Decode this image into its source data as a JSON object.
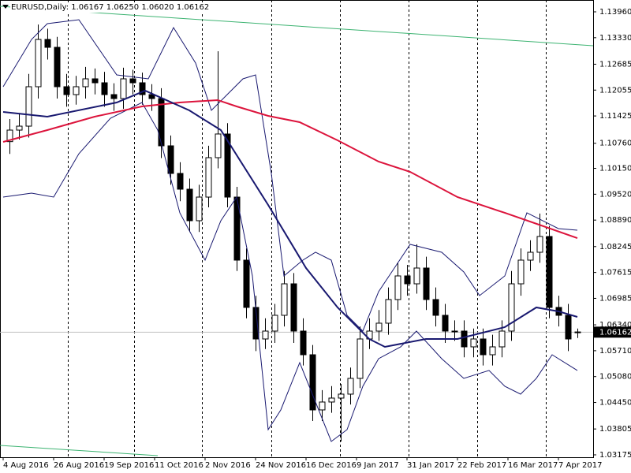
{
  "chart_data": {
    "type": "candlestick",
    "title": "EURUSD,Daily: 1.06167 1.06250 1.06020 1.06162",
    "x": [
      2,
      5,
      8,
      11,
      14,
      17,
      20,
      23,
      26,
      29,
      32,
      35,
      38,
      41,
      44,
      47,
      50,
      53,
      56,
      59,
      62,
      65,
      68,
      71,
      74,
      77,
      80,
      83,
      86,
      89,
      92,
      95,
      98,
      101,
      104,
      107,
      110,
      113,
      116,
      119,
      122,
      125,
      128,
      131,
      134,
      137,
      140,
      143,
      146,
      149,
      152,
      155,
      158,
      161,
      164,
      167,
      170,
      173,
      176,
      179,
      182
    ],
    "open": [
      1.108,
      1.11081,
      1.11177,
      1.12137,
      1.13288,
      1.13096,
      1.12137,
      1.11945,
      1.12137,
      1.12329,
      1.12233,
      1.11945,
      1.11849,
      1.12329,
      1.12233,
      1.11945,
      1.11849,
      1.10698,
      1.10026,
      1.09642,
      1.08875,
      1.0945,
      1.1041,
      1.10986,
      1.0945,
      1.07915,
      1.06764,
      1.05996,
      1.06188,
      1.06572,
      1.07339,
      1.06188,
      1.05612,
      1.04269,
      1.04461,
      1.04557,
      1.04653,
      1.05037,
      1.05996,
      1.06188,
      1.0638,
      1.06956,
      1.07531,
      1.07339,
      1.07723,
      1.06956,
      1.06572,
      1.06188,
      1.06188,
      1.05804,
      1.05996,
      1.05612,
      1.05804,
      1.06188,
      1.07339,
      1.07915,
      1.08107,
      1.08491,
      1.06764,
      1.06572,
      1.06167
    ],
    "high": [
      1.1135,
      1.115,
      1.1245,
      1.1365,
      1.1355,
      1.1335,
      1.1245,
      1.124,
      1.1262,
      1.1258,
      1.125,
      1.1222,
      1.126,
      1.1255,
      1.1248,
      1.122,
      1.121,
      1.1095,
      1.103,
      1.099,
      1.0975,
      1.107,
      1.13,
      1.1125,
      1.097,
      1.082,
      1.0705,
      1.065,
      1.0685,
      1.0765,
      1.076,
      1.065,
      1.0585,
      1.0475,
      1.0485,
      1.049,
      1.053,
      1.063,
      1.065,
      1.067,
      1.0725,
      1.0785,
      1.078,
      1.083,
      1.08,
      1.0725,
      1.0685,
      1.0645,
      1.0645,
      1.0625,
      1.0625,
      1.061,
      1.0645,
      1.0765,
      1.082,
      1.084,
      1.0905,
      1.0875,
      1.0705,
      1.0685,
      1.0625
    ],
    "low": [
      1.105,
      1.1085,
      1.109,
      1.1185,
      1.128,
      1.1185,
      1.1165,
      1.117,
      1.1185,
      1.1195,
      1.1165,
      1.1155,
      1.116,
      1.1195,
      1.117,
      1.1155,
      1.104,
      1.0975,
      1.0935,
      1.086,
      1.086,
      1.092,
      1.1015,
      1.092,
      1.0765,
      1.065,
      1.057,
      1.0575,
      1.059,
      1.063,
      1.059,
      1.0535,
      1.04,
      1.04,
      1.042,
      1.035,
      1.044,
      1.048,
      1.0575,
      1.0595,
      1.061,
      1.067,
      1.0705,
      1.071,
      1.067,
      1.063,
      1.059,
      1.0595,
      1.0555,
      1.0555,
      1.0535,
      1.0535,
      1.0555,
      1.0595,
      1.0705,
      1.0765,
      1.0785,
      1.065,
      1.063,
      1.057,
      1.0602
    ],
    "close": [
      1.11081,
      1.11177,
      1.12137,
      1.13288,
      1.13096,
      1.12137,
      1.11945,
      1.12137,
      1.12329,
      1.12233,
      1.11945,
      1.11849,
      1.12329,
      1.12233,
      1.11945,
      1.11849,
      1.10698,
      1.10026,
      1.09642,
      1.08875,
      1.0945,
      1.1041,
      1.10986,
      1.0945,
      1.07915,
      1.06764,
      1.05996,
      1.06188,
      1.06572,
      1.07339,
      1.06188,
      1.05612,
      1.04269,
      1.04461,
      1.04557,
      1.04653,
      1.05037,
      1.05996,
      1.06188,
      1.0638,
      1.06956,
      1.07531,
      1.07339,
      1.07723,
      1.06956,
      1.06572,
      1.06188,
      1.06188,
      1.05804,
      1.05996,
      1.05612,
      1.05804,
      1.06188,
      1.07339,
      1.07915,
      1.08107,
      1.08491,
      1.06764,
      1.06572,
      1.05996,
      1.06162
    ],
    "up_color": "#ffffff",
    "down_color": "#000000",
    "lines": [
      {
        "color": "#3cb371",
        "width": 1,
        "x": [
          -1,
          187
        ],
        "values": [
          1.14094,
          1.13135
        ]
      },
      {
        "color": "#3cb371",
        "width": 1,
        "x": [
          -1,
          49
        ],
        "values": [
          1.03405,
          1.03156
        ]
      },
      {
        "color": "#191970",
        "width": 1,
        "x": [
          0,
          9,
          14,
          24,
          36,
          46,
          54,
          61,
          66,
          71,
          76,
          80,
          85,
          89,
          95,
          99,
          104,
          109,
          114,
          119,
          124,
          129,
          134,
          139,
          146,
          151,
          159,
          166,
          171,
          176,
          182
        ],
        "values": [
          1.12137,
          1.13288,
          1.13672,
          1.13768,
          1.12425,
          1.12329,
          1.13576,
          1.12713,
          1.11561,
          1.11945,
          1.12329,
          1.12425,
          1.10026,
          1.07531,
          1.07915,
          1.08107,
          1.07915,
          1.06572,
          1.06188,
          1.07148,
          1.07723,
          1.08299,
          1.08203,
          1.08107,
          1.07627,
          1.07052,
          1.07531,
          1.09067,
          1.08875,
          1.08683,
          1.08644
        ]
      },
      {
        "color": "#191970",
        "width": 1,
        "x": [
          0,
          9,
          16,
          24,
          34,
          44,
          49,
          56,
          64,
          69,
          74,
          79,
          84,
          88,
          94,
          99,
          104,
          109,
          114,
          119,
          126,
          131,
          139,
          146,
          154,
          159,
          164,
          169,
          174,
          182
        ],
        "values": [
          1.0945,
          1.09546,
          1.0945,
          1.10506,
          1.11369,
          1.11753,
          1.11081,
          1.09067,
          1.07915,
          1.08875,
          1.0945,
          1.07531,
          1.03789,
          1.04269,
          1.0542,
          1.04461,
          1.03501,
          1.03789,
          1.04845,
          1.05516,
          1.05804,
          1.06188,
          1.05516,
          1.05037,
          1.05229,
          1.04845,
          1.04653,
          1.05037,
          1.05612,
          1.05229
        ]
      },
      {
        "color": "#dc143c",
        "width": 2,
        "x": [
          0,
          14,
          29,
          44,
          56,
          68,
          74,
          84,
          94,
          106,
          119,
          129,
          144,
          159,
          172,
          182
        ],
        "values": [
          1.10794,
          1.11081,
          1.11408,
          1.11657,
          1.11753,
          1.11811,
          1.11657,
          1.11427,
          1.11273,
          1.10832,
          1.10314,
          1.10064,
          1.0945,
          1.09067,
          1.08721,
          1.08452
        ]
      },
      {
        "color": "#191970",
        "width": 2,
        "x": [
          0,
          14,
          36,
          45,
          59,
          69,
          84,
          96,
          106,
          116,
          121,
          134,
          144,
          159,
          169,
          176,
          182
        ],
        "values": [
          1.11523,
          1.11408,
          1.11753,
          1.12041,
          1.11561,
          1.11081,
          1.09258,
          1.07723,
          1.06764,
          1.05996,
          1.05804,
          1.05996,
          1.05996,
          1.06284,
          1.06764,
          1.06668,
          1.06533
        ]
      }
    ],
    "xlim": [
      -1,
      187
    ],
    "xticks": [
      {
        "value": 0,
        "label": "4 Aug 2016"
      },
      {
        "value": 16,
        "label": "26 Aug 2016"
      },
      {
        "value": 32,
        "label": "19 Sep 2016"
      },
      {
        "value": 48,
        "label": "11 Oct 2016"
      },
      {
        "value": 64,
        "label": "2 Nov 2016"
      },
      {
        "value": 80,
        "label": "24 Nov 2016"
      },
      {
        "value": 96,
        "label": "16 Dec 2016"
      },
      {
        "value": 112,
        "label": "9 Jan 2017"
      },
      {
        "value": 128,
        "label": "31 Jan 2017"
      },
      {
        "value": 144,
        "label": "22 Feb 2017"
      },
      {
        "value": 160,
        "label": "16 Mar 2017"
      },
      {
        "value": 176,
        "label": "7 Apr 2017"
      }
    ],
    "ylim": [
      1.03117,
      1.14248
    ],
    "yticks": [
      {
        "value": 1.1396,
        "label": "1.13960"
      },
      {
        "value": 1.1333,
        "label": "1.13330"
      },
      {
        "value": 1.12685,
        "label": "1.12685"
      },
      {
        "value": 1.12055,
        "label": "1.12055"
      },
      {
        "value": 1.11425,
        "label": "1.11425"
      },
      {
        "value": 1.1076,
        "label": "1.10760"
      },
      {
        "value": 1.1015,
        "label": "1.10150"
      },
      {
        "value": 1.0952,
        "label": "1.09520"
      },
      {
        "value": 1.0889,
        "label": "1.08890"
      },
      {
        "value": 1.08245,
        "label": "1.08245"
      },
      {
        "value": 1.07615,
        "label": "1.07615"
      },
      {
        "value": 1.06985,
        "label": "1.06985"
      },
      {
        "value": 1.0634,
        "label": "1.06340"
      },
      {
        "value": 1.0571,
        "label": "1.05710"
      },
      {
        "value": 1.0508,
        "label": "1.05080"
      },
      {
        "value": 1.0445,
        "label": "1.04450"
      },
      {
        "value": 1.03805,
        "label": "1.03805"
      },
      {
        "value": 1.03175,
        "label": "1.03175"
      }
    ],
    "current_price": {
      "value": 1.06162,
      "label": "1.06162"
    }
  }
}
